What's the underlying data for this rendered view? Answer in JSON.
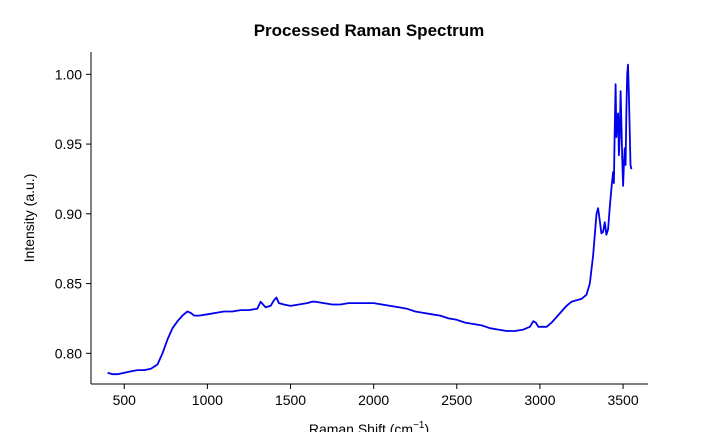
{
  "chart_data": {
    "type": "line",
    "title": "Processed Raman Spectrum",
    "xlabel": "Raman Shift (cm",
    "xlabel_superscript": "−1",
    "xlabel_suffix": ")",
    "ylabel": "Intensity (a.u.)",
    "xlim": [
      300,
      3650
    ],
    "ylim": [
      0.778,
      1.016
    ],
    "xticks": [
      500,
      1000,
      1500,
      2000,
      2500,
      3000,
      3500
    ],
    "xtick_labels": [
      "500",
      "1000",
      "1500",
      "2000",
      "2500",
      "3000",
      "3500"
    ],
    "yticks": [
      0.8,
      0.85,
      0.9,
      0.95,
      1.0
    ],
    "ytick_labels": [
      "0.80",
      "0.85",
      "0.90",
      "0.95",
      "1.00"
    ],
    "grid": false,
    "line_color": "#0000ee",
    "series": [
      {
        "x": [
          400,
          430,
          460,
          500,
          540,
          580,
          620,
          660,
          700,
          730,
          760,
          790,
          820,
          850,
          880,
          900,
          920,
          950,
          1000,
          1050,
          1100,
          1150,
          1200,
          1250,
          1300,
          1320,
          1335,
          1350,
          1380,
          1400,
          1415,
          1430,
          1460,
          1500,
          1550,
          1600,
          1630,
          1650,
          1700,
          1750,
          1800,
          1850,
          1900,
          1950,
          2000,
          2050,
          2100,
          2150,
          2200,
          2250,
          2300,
          2350,
          2400,
          2450,
          2500,
          2550,
          2600,
          2650,
          2700,
          2750,
          2800,
          2850,
          2900,
          2940,
          2960,
          2975,
          2990,
          3010,
          3040,
          3070,
          3100,
          3130,
          3160,
          3190,
          3220,
          3250,
          3280,
          3300,
          3320,
          3330,
          3340,
          3350,
          3360,
          3370,
          3380,
          3390,
          3400,
          3410,
          3420,
          3430,
          3440,
          3445,
          3450,
          3455,
          3460,
          3465,
          3470,
          3475,
          3480,
          3485,
          3490,
          3495,
          3500,
          3505,
          3510,
          3515,
          3520,
          3525,
          3530,
          3535,
          3540,
          3545,
          3550
        ],
        "y": [
          0.786,
          0.785,
          0.785,
          0.786,
          0.787,
          0.788,
          0.788,
          0.789,
          0.792,
          0.8,
          0.81,
          0.818,
          0.823,
          0.827,
          0.83,
          0.829,
          0.827,
          0.827,
          0.828,
          0.829,
          0.83,
          0.83,
          0.831,
          0.831,
          0.832,
          0.837,
          0.835,
          0.833,
          0.834,
          0.838,
          0.84,
          0.836,
          0.835,
          0.834,
          0.835,
          0.836,
          0.837,
          0.837,
          0.836,
          0.835,
          0.835,
          0.836,
          0.836,
          0.836,
          0.836,
          0.835,
          0.834,
          0.833,
          0.832,
          0.83,
          0.829,
          0.828,
          0.827,
          0.825,
          0.824,
          0.822,
          0.821,
          0.82,
          0.818,
          0.817,
          0.816,
          0.816,
          0.817,
          0.819,
          0.823,
          0.822,
          0.819,
          0.819,
          0.819,
          0.822,
          0.826,
          0.83,
          0.834,
          0.837,
          0.838,
          0.839,
          0.842,
          0.85,
          0.87,
          0.885,
          0.9,
          0.904,
          0.895,
          0.886,
          0.887,
          0.894,
          0.885,
          0.889,
          0.905,
          0.918,
          0.93,
          0.922,
          0.96,
          0.993,
          0.955,
          0.965,
          0.972,
          0.942,
          0.955,
          0.988,
          0.965,
          0.94,
          0.92,
          0.935,
          0.947,
          0.935,
          0.975,
          1.0,
          1.007,
          0.985,
          0.96,
          0.935,
          0.932
        ]
      }
    ]
  }
}
